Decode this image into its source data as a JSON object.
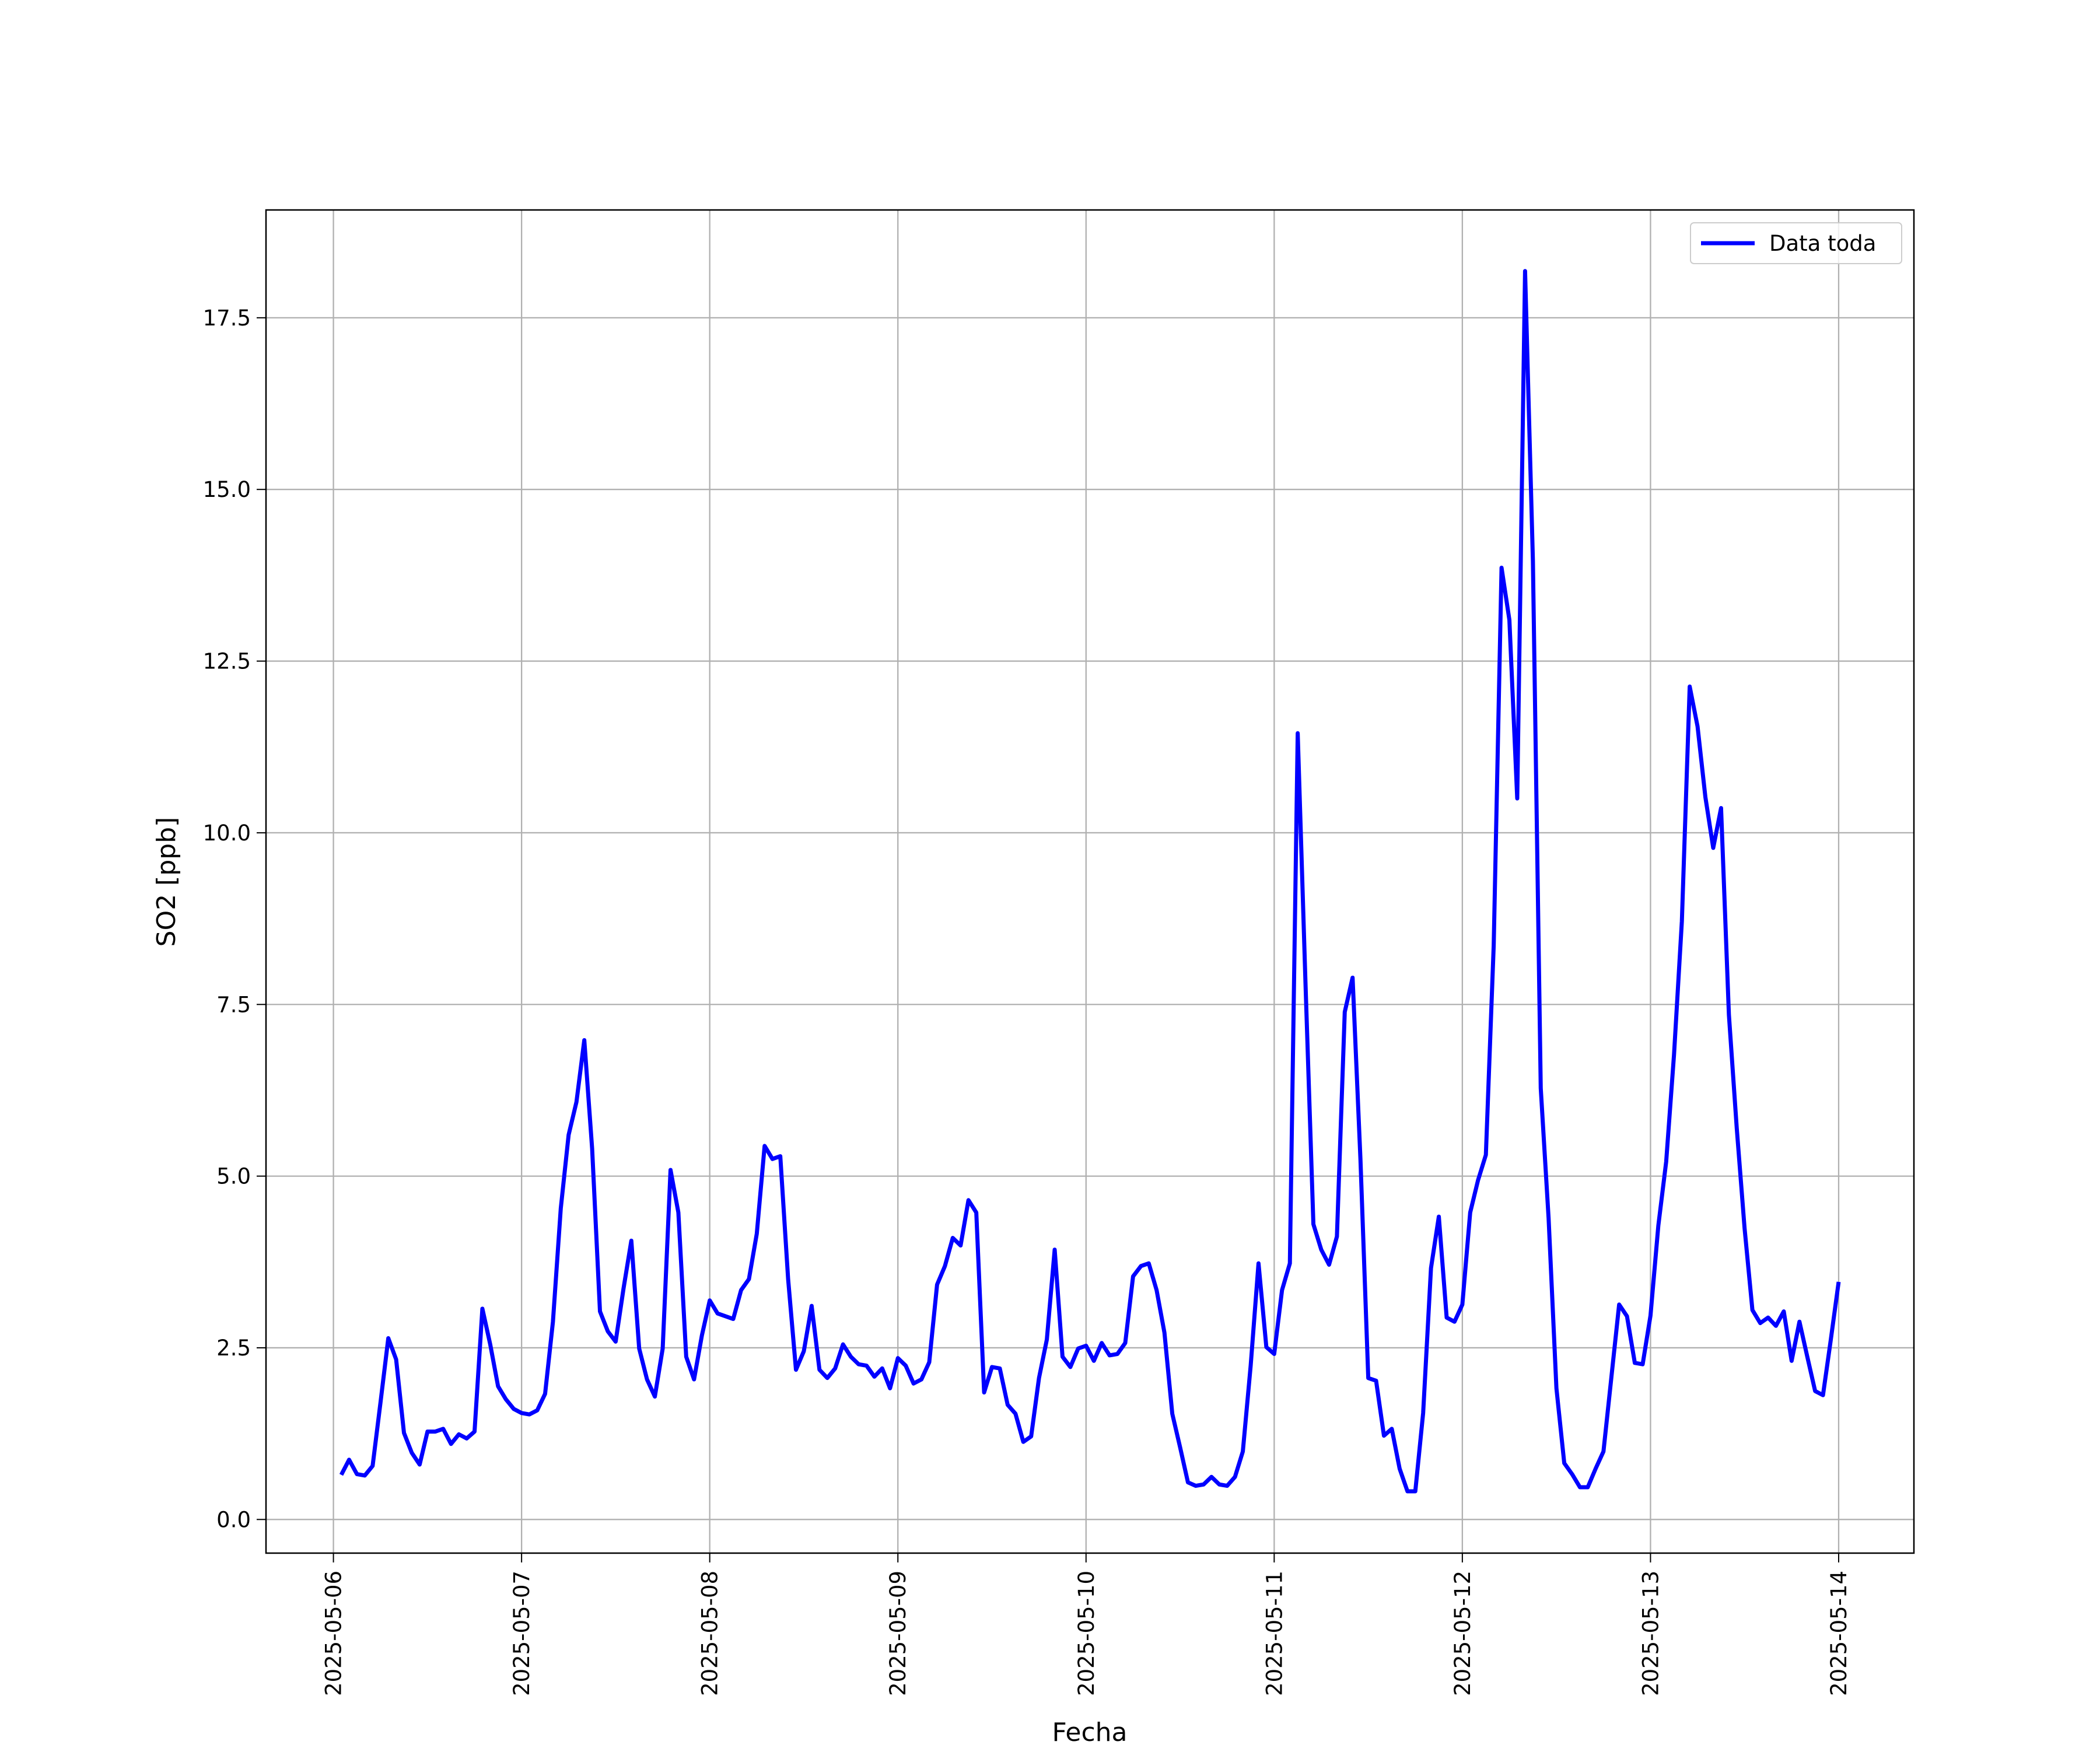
{
  "chart_data": {
    "type": "line",
    "xlabel": "Fecha",
    "ylabel": "SO2 [ppb]",
    "x": [
      1,
      2,
      3,
      4,
      5,
      6,
      7,
      8,
      9,
      10,
      11,
      12,
      13,
      14,
      15,
      16,
      17,
      18,
      19,
      20,
      21,
      22,
      23,
      24,
      25,
      26,
      27,
      28,
      29,
      30,
      31,
      32,
      33,
      34,
      35,
      36,
      37,
      38,
      39,
      40,
      41,
      42,
      43,
      44,
      45,
      46,
      47,
      48,
      49,
      50,
      51,
      52,
      53,
      54,
      55,
      56,
      57,
      58,
      59,
      60,
      61,
      62,
      63,
      64,
      65,
      66,
      67,
      68,
      69,
      70,
      71,
      72,
      73,
      74,
      75,
      76,
      77,
      78,
      79,
      80,
      81,
      82,
      83,
      84,
      85,
      86,
      87,
      88,
      89,
      90,
      91,
      92,
      93,
      94,
      95,
      96,
      97,
      98,
      99,
      100,
      101,
      102,
      103,
      104,
      105,
      106,
      107,
      108,
      109,
      110,
      111,
      112,
      113,
      114,
      115,
      116,
      117,
      118,
      119,
      120,
      121,
      122,
      123,
      124,
      125,
      126,
      127,
      128,
      129,
      130,
      131,
      132,
      133,
      134,
      135,
      136,
      137,
      138,
      139,
      140,
      141,
      142,
      143,
      144,
      145,
      146,
      147,
      148,
      149,
      150,
      151,
      152,
      153,
      154,
      155,
      156,
      157,
      158,
      159,
      160,
      161,
      162,
      163,
      164,
      165,
      166,
      167,
      168,
      169,
      170,
      171,
      172,
      173,
      174,
      175,
      176,
      177,
      178,
      179,
      180,
      181,
      182,
      183,
      184,
      185,
      186,
      187,
      188,
      189,
      190,
      191,
      192
    ],
    "series": [
      {
        "name": "Data toda",
        "color": "#0000ff",
        "values": [
          0.65,
          0.87,
          0.66,
          0.64,
          0.78,
          1.7,
          2.64,
          2.33,
          1.26,
          0.97,
          0.8,
          1.28,
          1.28,
          1.32,
          1.1,
          1.24,
          1.18,
          1.28,
          3.07,
          2.55,
          1.94,
          1.75,
          1.61,
          1.55,
          1.53,
          1.59,
          1.83,
          2.88,
          4.53,
          5.6,
          6.08,
          6.98,
          5.4,
          3.03,
          2.74,
          2.59,
          3.36,
          4.06,
          2.49,
          2.04,
          1.79,
          2.49,
          5.09,
          4.47,
          2.37,
          2.04,
          2.68,
          3.19,
          3.0,
          2.96,
          2.92,
          3.34,
          3.5,
          4.16,
          5.44,
          5.25,
          5.29,
          3.5,
          2.18,
          2.45,
          3.11,
          2.18,
          2.06,
          2.2,
          2.55,
          2.37,
          2.26,
          2.24,
          2.08,
          2.2,
          1.91,
          2.35,
          2.24,
          1.98,
          2.04,
          2.29,
          3.42,
          3.69,
          4.1,
          3.99,
          4.65,
          4.47,
          1.85,
          2.22,
          2.2,
          1.67,
          1.54,
          1.13,
          1.21,
          2.06,
          2.62,
          3.93,
          2.37,
          2.22,
          2.49,
          2.53,
          2.31,
          2.57,
          2.39,
          2.41,
          2.57,
          3.54,
          3.69,
          3.73,
          3.34,
          2.72,
          1.54,
          1.05,
          0.54,
          0.49,
          0.51,
          0.62,
          0.51,
          0.49,
          0.62,
          0.99,
          2.24,
          3.73,
          2.51,
          2.41,
          3.34,
          3.73,
          11.45,
          7.78,
          4.3,
          3.93,
          3.71,
          4.12,
          7.39,
          7.89,
          5.25,
          2.06,
          2.02,
          1.22,
          1.32,
          0.74,
          0.41,
          0.41,
          1.55,
          3.66,
          4.41,
          2.94,
          2.88,
          3.13,
          4.47,
          4.94,
          5.31,
          8.36,
          13.86,
          13.1,
          10.5,
          18.18,
          13.96,
          6.28,
          4.39,
          1.91,
          0.82,
          0.66,
          0.47,
          0.47,
          0.74,
          0.99,
          2.06,
          3.13,
          2.96,
          2.28,
          2.26,
          2.97,
          4.28,
          5.21,
          6.77,
          8.71,
          12.13,
          11.55,
          10.52,
          9.78,
          10.36,
          7.35,
          5.7,
          4.24,
          3.05,
          2.86,
          2.94,
          2.82,
          3.03,
          2.31,
          2.88,
          2.37,
          1.87,
          1.81,
          2.62,
          3.46
        ]
      }
    ],
    "xlim": [
      -8.6,
      201.6
    ],
    "xticks": [
      {
        "value": 0,
        "label": "2025-05-06"
      },
      {
        "value": 24,
        "label": "2025-05-07"
      },
      {
        "value": 48,
        "label": "2025-05-08"
      },
      {
        "value": 72,
        "label": "2025-05-09"
      },
      {
        "value": 96,
        "label": "2025-05-10"
      },
      {
        "value": 120,
        "label": "2025-05-11"
      },
      {
        "value": 144,
        "label": "2025-05-12"
      },
      {
        "value": 168,
        "label": "2025-05-13"
      },
      {
        "value": 192,
        "label": "2025-05-14"
      }
    ],
    "ylim": [
      -0.49,
      19.07
    ],
    "yticks": [
      {
        "value": 0,
        "label": "0.0"
      },
      {
        "value": 2.5,
        "label": "2.5"
      },
      {
        "value": 5,
        "label": "5.0"
      },
      {
        "value": 7.5,
        "label": "7.5"
      },
      {
        "value": 10,
        "label": "10.0"
      },
      {
        "value": 12.5,
        "label": "12.5"
      },
      {
        "value": 15,
        "label": "15.0"
      },
      {
        "value": 17.5,
        "label": "17.5"
      }
    ],
    "grid": true,
    "legend": "upper right"
  }
}
